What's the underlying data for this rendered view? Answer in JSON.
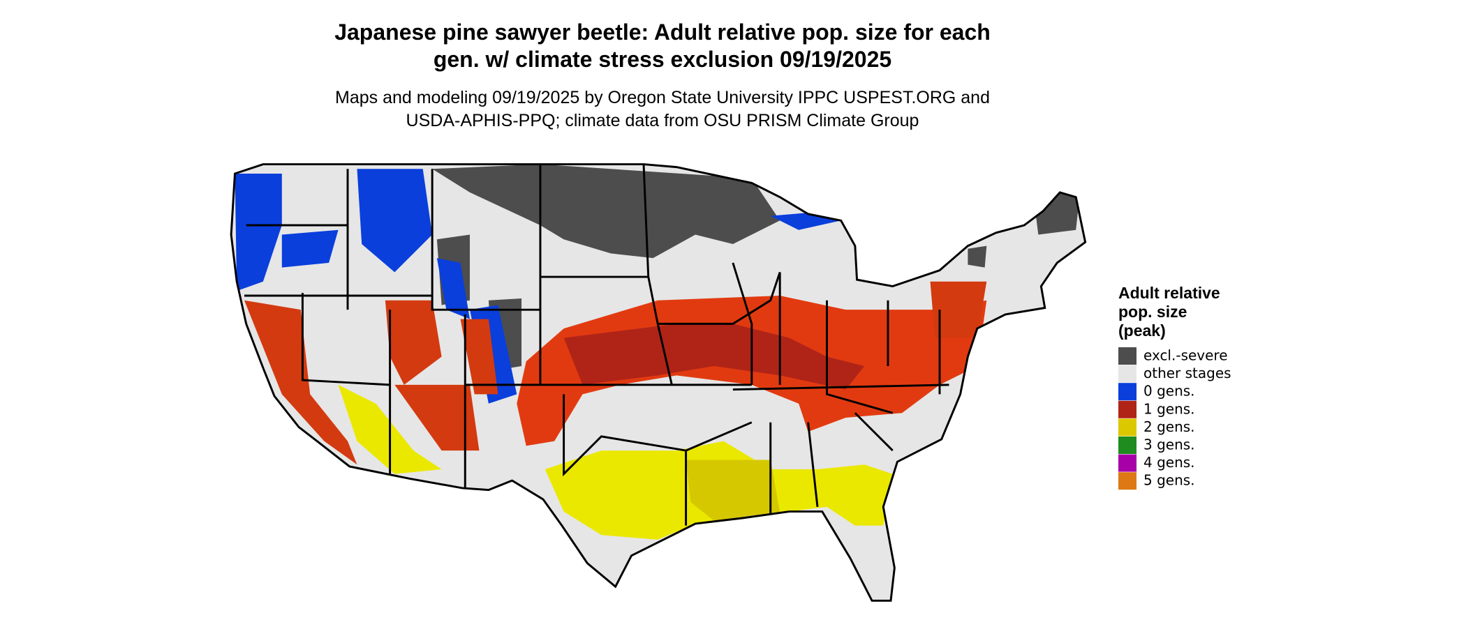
{
  "header": {
    "title": [
      "Japanese pine sawyer beetle: Adult relative pop. size for each",
      "gen. w/ climate stress exclusion 09/19/2025"
    ],
    "subtitle": [
      "Maps and modeling 09/19/2025 by Oregon State University IPPC USPEST.ORG and",
      "USDA-APHIS-PPQ; climate data from OSU PRISM Climate Group"
    ]
  },
  "legend": {
    "title": [
      "Adult relative",
      "pop. size",
      "(peak)"
    ],
    "items": [
      {
        "label": "excl.-severe",
        "color": "#4d4d4d"
      },
      {
        "label": "other stages",
        "color": "#e6e6e6"
      },
      {
        "label": "0 gens.",
        "color": "#0a3fdc"
      },
      {
        "label": "1 gens.",
        "color": "#b02418"
      },
      {
        "label": "2 gens.",
        "color": "#dcc800"
      },
      {
        "label": "3 gens.",
        "color": "#1e8c1e"
      },
      {
        "label": "4 gens.",
        "color": "#a800a8"
      },
      {
        "label": "5 gens.",
        "color": "#de7814"
      }
    ]
  }
}
